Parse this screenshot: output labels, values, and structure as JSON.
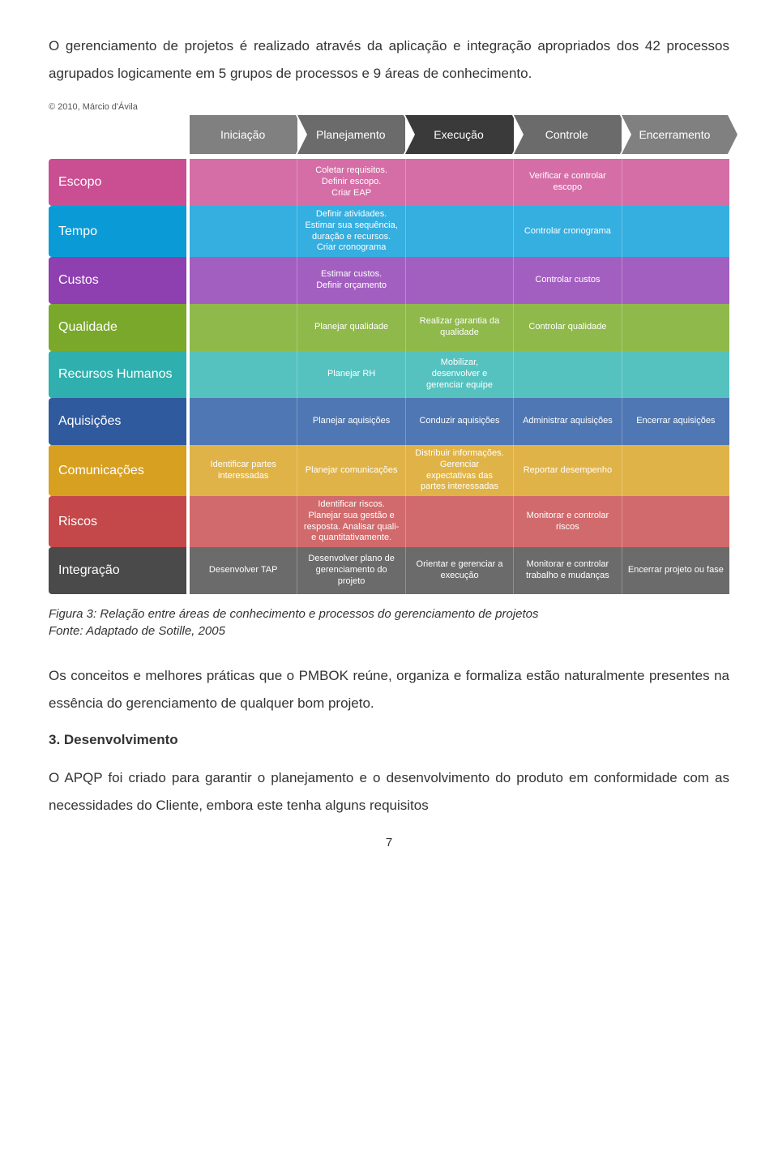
{
  "intro_para": "O gerenciamento de projetos é realizado através da aplicação e integração apropriados dos 42 processos agrupados logicamente em 5 grupos de processos e 9 áreas de conhecimento.",
  "copyright": "© 2010, Márcio d'Ávila",
  "phases": [
    {
      "label": "Iniciação",
      "bg": "#808080",
      "arrow": "#808080"
    },
    {
      "label": "Planejamento",
      "bg": "#6b6b6b",
      "arrow": "#6b6b6b"
    },
    {
      "label": "Execução",
      "bg": "#3a3a3a",
      "arrow": "#3a3a3a"
    },
    {
      "label": "Controle",
      "bg": "#6b6b6b",
      "arrow": "#6b6b6b"
    },
    {
      "label": "Encerramento",
      "bg": "#808080",
      "arrow": "#808080"
    }
  ],
  "rows": [
    {
      "name": "Escopo",
      "color_label": "#c94f92",
      "color_cells": "#d56ea6",
      "cells": [
        "",
        "Coletar requisitos.\nDefinir escopo.\nCriar EAP",
        "",
        "Verificar e controlar escopo",
        ""
      ]
    },
    {
      "name": "Tempo",
      "color_label": "#0a9bd6",
      "color_cells": "#35aee0",
      "cells": [
        "",
        "Definir atividades.\nEstimar sua sequência,\nduração e recursos.\nCriar cronograma",
        "",
        "Controlar cronograma",
        ""
      ]
    },
    {
      "name": "Custos",
      "color_label": "#8e3fb0",
      "color_cells": "#a35fc0",
      "cells": [
        "",
        "Estimar custos.\nDefinir orçamento",
        "",
        "Controlar custos",
        ""
      ]
    },
    {
      "name": "Qualidade",
      "color_label": "#7aa82a",
      "color_cells": "#8fb94a",
      "cells": [
        "",
        "Planejar qualidade",
        "Realizar garantia da qualidade",
        "Controlar qualidade",
        ""
      ]
    },
    {
      "name": "Recursos Humanos",
      "color_label": "#2fb0ae",
      "color_cells": "#55c2c0",
      "cells": [
        "",
        "Planejar RH",
        "Mobilizar,\ndesenvolver e\ngerenciar equipe",
        "",
        ""
      ]
    },
    {
      "name": "Aquisições",
      "color_label": "#2f5a9e",
      "color_cells": "#4f77b3",
      "cells": [
        "",
        "Planejar aquisições",
        "Conduzir aquisições",
        "Administrar aquisições",
        "Encerrar aquisições"
      ]
    },
    {
      "name": "Comunicações",
      "color_label": "#d8a020",
      "color_cells": "#e0b348",
      "cells": [
        "Identificar partes interessadas",
        "Planejar comunicações",
        "Distribuir informações.\nGerenciar\nexpectativas das\npartes interessadas",
        "Reportar desempenho",
        ""
      ]
    },
    {
      "name": "Riscos",
      "color_label": "#c4474a",
      "color_cells": "#d16a6c",
      "cells": [
        "",
        "Identificar riscos.\nPlanejar sua gestão e\nresposta. Analisar quali-\ne quantitativamente.",
        "",
        "Monitorar e controlar riscos",
        ""
      ]
    },
    {
      "name": "Integração",
      "color_label": "#4a4a4a",
      "color_cells": "#6b6b6b",
      "cells": [
        "Desenvolver TAP",
        "Desenvolver plano de gerenciamento do projeto",
        "Orientar e gerenciar a execução",
        "Monitorar e controlar trabalho e mudanças",
        "Encerrar projeto ou fase"
      ]
    }
  ],
  "figure_caption": "Figura 3: Relação entre áreas de conhecimento e processos do gerenciamento de projetos",
  "figure_source": "Fonte: Adaptado de Sotille, 2005",
  "para2": "Os conceitos e melhores práticas que o PMBOK reúne, organiza e formaliza estão naturalmente presentes na essência do gerenciamento de qualquer bom projeto.",
  "section3_title": "3. Desenvolvimento",
  "para3": "O APQP foi criado para garantir o planejamento e o desenvolvimento do produto em conformidade com as necessidades do Cliente, embora este tenha alguns requisitos",
  "page_number": "7"
}
